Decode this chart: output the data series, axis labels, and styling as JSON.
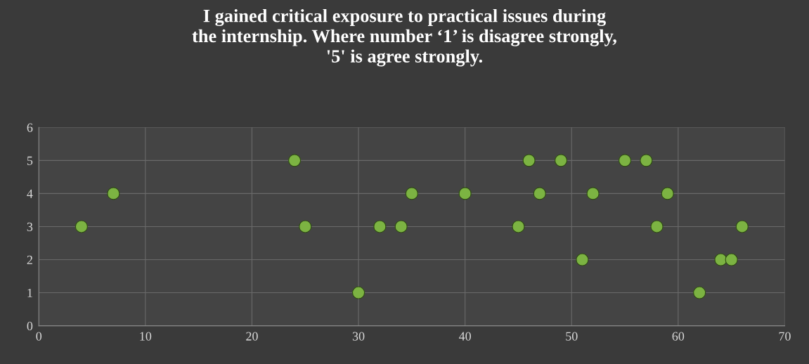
{
  "chart_data": {
    "type": "scatter",
    "title": "I gained critical exposure to practical issues during\nthe internship. Where number ‘1’ is disagree strongly,\n'5' is agree strongly.",
    "x": [
      4,
      7,
      24,
      25,
      30,
      32,
      34,
      35,
      40,
      45,
      46,
      47,
      49,
      51,
      52,
      55,
      57,
      58,
      59,
      62,
      64,
      65,
      66
    ],
    "series": [
      {
        "color": "#7cb342",
        "values": [
          3,
          4,
          5,
          3,
          1,
          3,
          3,
          4,
          4,
          3,
          5,
          4,
          5,
          2,
          4,
          5,
          5,
          3,
          4,
          1,
          2,
          2,
          3
        ]
      }
    ],
    "xlim": [
      0,
      70
    ],
    "xticks": [
      0,
      10,
      20,
      30,
      40,
      50,
      60,
      70
    ],
    "ylim": [
      0,
      6
    ],
    "yticks": [
      0,
      1,
      2,
      3,
      4,
      5,
      6
    ],
    "grid": true,
    "marker": "circle"
  }
}
